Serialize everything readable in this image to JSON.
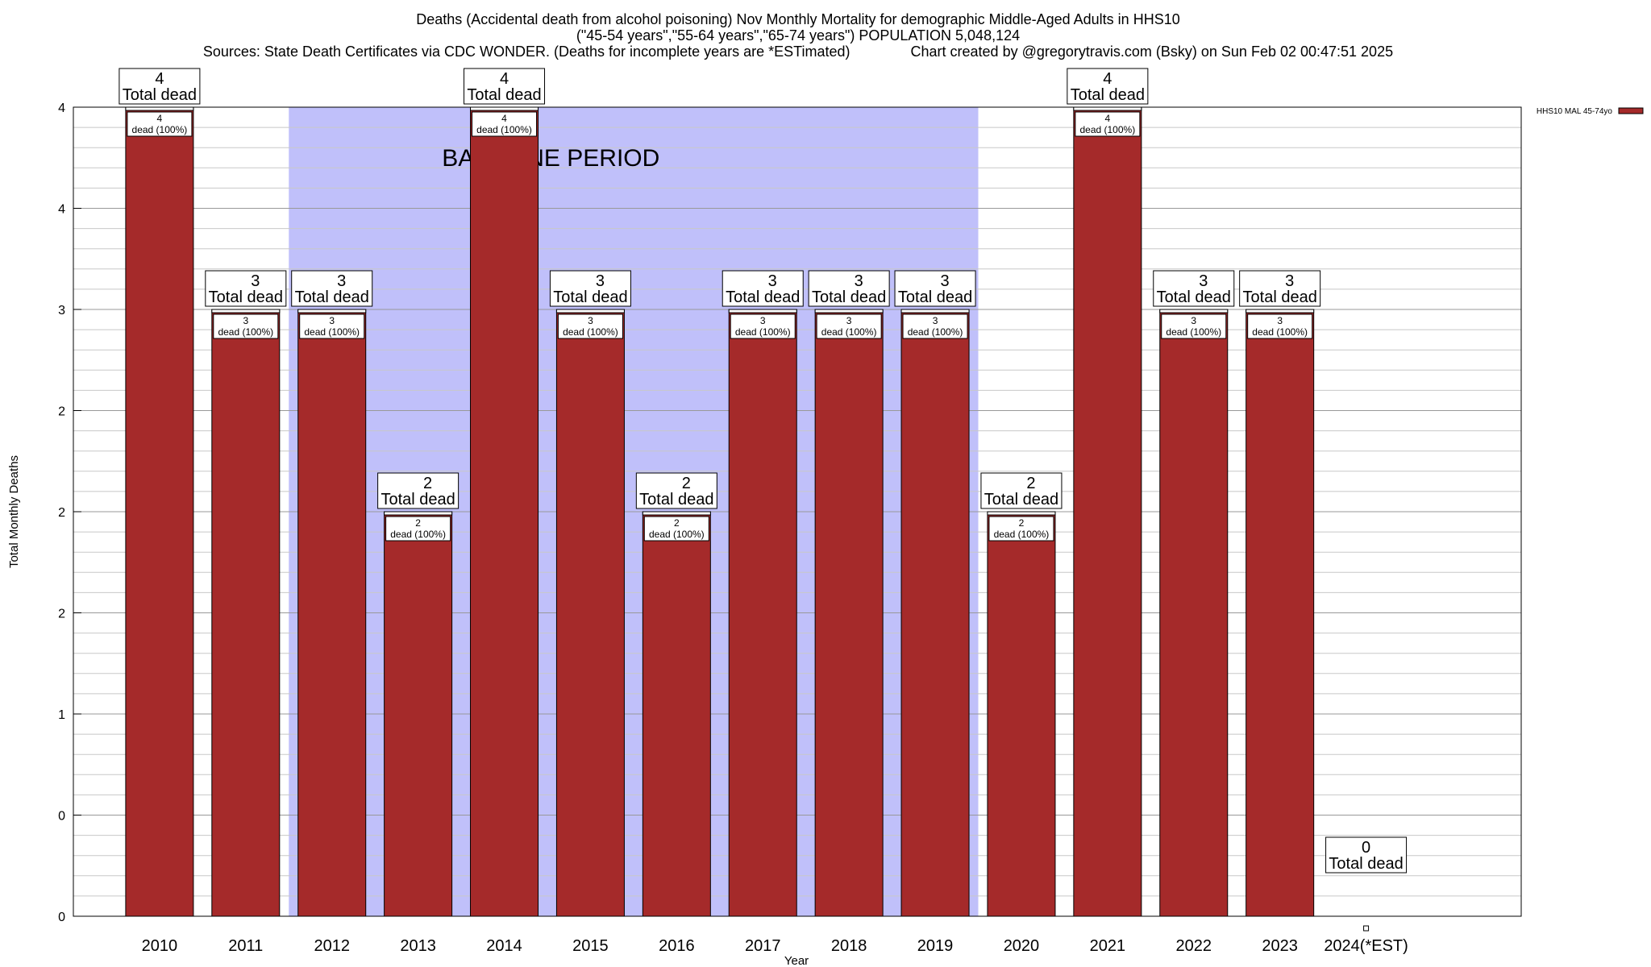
{
  "title": {
    "line1": "Deaths (Accidental death from alcohol poisoning) Nov Monthly Mortality for demographic Middle-Aged Adults in HHS10",
    "line2": "(\"45-54 years\",\"55-64 years\",\"65-74 years\") POPULATION 5,048,124",
    "line3": "Sources: State Death Certificates via CDC WONDER. (Deaths for incomplete years are *ESTimated)               Chart created by @gregorytravis.com (Bsky) on Sun Feb 02 00:47:51 2025"
  },
  "chart_data": {
    "type": "bar",
    "categories": [
      "2010",
      "2011",
      "2012",
      "2013",
      "2014",
      "2015",
      "2016",
      "2017",
      "2018",
      "2019",
      "2020",
      "2021",
      "2022",
      "2023",
      "2024(*EST)"
    ],
    "series": [
      {
        "name": "HHS10 MAL 45-74yo",
        "values": [
          4,
          3,
          3,
          2,
          4,
          3,
          2,
          3,
          3,
          3,
          2,
          4,
          3,
          3,
          0
        ]
      }
    ],
    "bar_top_labels": [
      "4",
      "3",
      "3",
      "2",
      "4",
      "3",
      "2",
      "3",
      "3",
      "3",
      "2",
      "4",
      "3",
      "3",
      "0"
    ],
    "total_label": "Total dead",
    "inner_labels": [
      {
        "count": "4",
        "text": "dead (100%)"
      },
      {
        "count": "3",
        "text": "dead (100%)"
      },
      {
        "count": "3",
        "text": "dead (100%)"
      },
      {
        "count": "2",
        "text": "dead (100%)"
      },
      {
        "count": "4",
        "text": "dead (100%)"
      },
      {
        "count": "3",
        "text": "dead (100%)"
      },
      {
        "count": "2",
        "text": "dead (100%)"
      },
      {
        "count": "3",
        "text": "dead (100%)"
      },
      {
        "count": "3",
        "text": "dead (100%)"
      },
      {
        "count": "3",
        "text": "dead (100%)"
      },
      {
        "count": "2",
        "text": "dead (100%)"
      },
      {
        "count": "4",
        "text": "dead (100%)"
      },
      {
        "count": "3",
        "text": "dead (100%)"
      },
      {
        "count": "3",
        "text": "dead (100%)"
      },
      null
    ],
    "xlabel": "Year",
    "ylabel": "Total Monthly Deaths",
    "ylim": [
      0,
      4
    ],
    "yticks": [
      {
        "value": 0,
        "label": "0"
      },
      {
        "value": 0.5,
        "label": "0"
      },
      {
        "value": 1,
        "label": "1"
      },
      {
        "value": 1.5,
        "label": "2"
      },
      {
        "value": 2,
        "label": "2"
      },
      {
        "value": 2.5,
        "label": "2"
      },
      {
        "value": 3,
        "label": "3"
      },
      {
        "value": 3.5,
        "label": "4"
      },
      {
        "value": 4,
        "label": "4"
      }
    ],
    "minor_grid_step": 0.1,
    "baseline_period": {
      "label": "BASELINE PERIOD",
      "from": "2012",
      "to": "2019"
    },
    "legend_placement": "top-right",
    "grid": true,
    "colors": {
      "bar": "#a52a2a",
      "baseline": "#c0c0fa",
      "grid": "#c8c8c8"
    }
  }
}
